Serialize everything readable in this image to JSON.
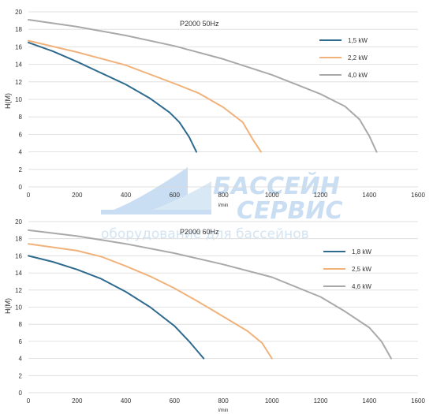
{
  "watermark": {
    "line1": "БАССЕЙН",
    "line2": "СЕРВИС",
    "line3": "оборудование для бассейнов",
    "color": "#c9def2"
  },
  "chart_data": [
    {
      "type": "line",
      "title": "P2000 50Hz",
      "xlabel": "l/min",
      "ylabel": "H(M)",
      "xlim": [
        0,
        1600
      ],
      "ylim": [
        0,
        20
      ],
      "x_ticks": [
        "0",
        "200",
        "400",
        "600",
        "800",
        "1000",
        "1200",
        "1400",
        "1600"
      ],
      "y_ticks": [
        "0",
        "2",
        "4",
        "6",
        "8",
        "10",
        "12",
        "14",
        "16",
        "18",
        "20"
      ],
      "grid": true,
      "legend_position": "top-right",
      "series": [
        {
          "name": "1,5 kW",
          "color": "#2e6a8e",
          "points": [
            [
              0,
              16.5
            ],
            [
              100,
              15.5
            ],
            [
              200,
              14.3
            ],
            [
              300,
              13.0
            ],
            [
              400,
              11.7
            ],
            [
              500,
              10.1
            ],
            [
              580,
              8.5
            ],
            [
              620,
              7.4
            ],
            [
              660,
              5.7
            ],
            [
              690,
              4.0
            ]
          ]
        },
        {
          "name": "2,2 kW",
          "color": "#f0b27a",
          "points": [
            [
              0,
              16.7
            ],
            [
              200,
              15.4
            ],
            [
              400,
              13.9
            ],
            [
              600,
              11.8
            ],
            [
              700,
              10.7
            ],
            [
              800,
              9.1
            ],
            [
              880,
              7.4
            ],
            [
              920,
              5.5
            ],
            [
              955,
              4.0
            ]
          ]
        },
        {
          "name": "4,0 kW",
          "color": "#a9a9a9",
          "points": [
            [
              0,
              19.1
            ],
            [
              200,
              18.3
            ],
            [
              400,
              17.3
            ],
            [
              600,
              16.1
            ],
            [
              800,
              14.6
            ],
            [
              1000,
              12.8
            ],
            [
              1200,
              10.6
            ],
            [
              1300,
              9.2
            ],
            [
              1360,
              7.7
            ],
            [
              1400,
              5.8
            ],
            [
              1430,
              4.0
            ]
          ]
        }
      ]
    },
    {
      "type": "line",
      "title": "P2000 60Hz",
      "xlabel": "l/min",
      "ylabel": "H(M)",
      "xlim": [
        0,
        1600
      ],
      "ylim": [
        0,
        20
      ],
      "x_ticks": [
        "0",
        "200",
        "400",
        "600",
        "800",
        "1000",
        "1200",
        "1400",
        "1600"
      ],
      "y_ticks": [
        "0",
        "2",
        "4",
        "6",
        "8",
        "10",
        "12",
        "14",
        "16",
        "18",
        "20"
      ],
      "grid": true,
      "legend_position": "top-right",
      "series": [
        {
          "name": "1,8 kW",
          "color": "#2e6a8e",
          "points": [
            [
              0,
              16.0
            ],
            [
              100,
              15.3
            ],
            [
              200,
              14.4
            ],
            [
              300,
              13.3
            ],
            [
              400,
              11.8
            ],
            [
              500,
              10.0
            ],
            [
              600,
              7.8
            ],
            [
              660,
              6.0
            ],
            [
              720,
              4.0
            ]
          ]
        },
        {
          "name": "2,5 kW",
          "color": "#f0b27a",
          "points": [
            [
              0,
              17.4
            ],
            [
              200,
              16.6
            ],
            [
              300,
              15.9
            ],
            [
              400,
              14.8
            ],
            [
              500,
              13.6
            ],
            [
              600,
              12.2
            ],
            [
              700,
              10.6
            ],
            [
              800,
              8.9
            ],
            [
              900,
              7.2
            ],
            [
              960,
              5.8
            ],
            [
              1000,
              4.0
            ]
          ]
        },
        {
          "name": "4,6 kW",
          "color": "#a9a9a9",
          "points": [
            [
              0,
              19.0
            ],
            [
              200,
              18.3
            ],
            [
              400,
              17.4
            ],
            [
              600,
              16.3
            ],
            [
              800,
              15.0
            ],
            [
              1000,
              13.5
            ],
            [
              1200,
              11.2
            ],
            [
              1300,
              9.5
            ],
            [
              1400,
              7.6
            ],
            [
              1450,
              6.0
            ],
            [
              1490,
              4.0
            ]
          ]
        }
      ]
    }
  ]
}
